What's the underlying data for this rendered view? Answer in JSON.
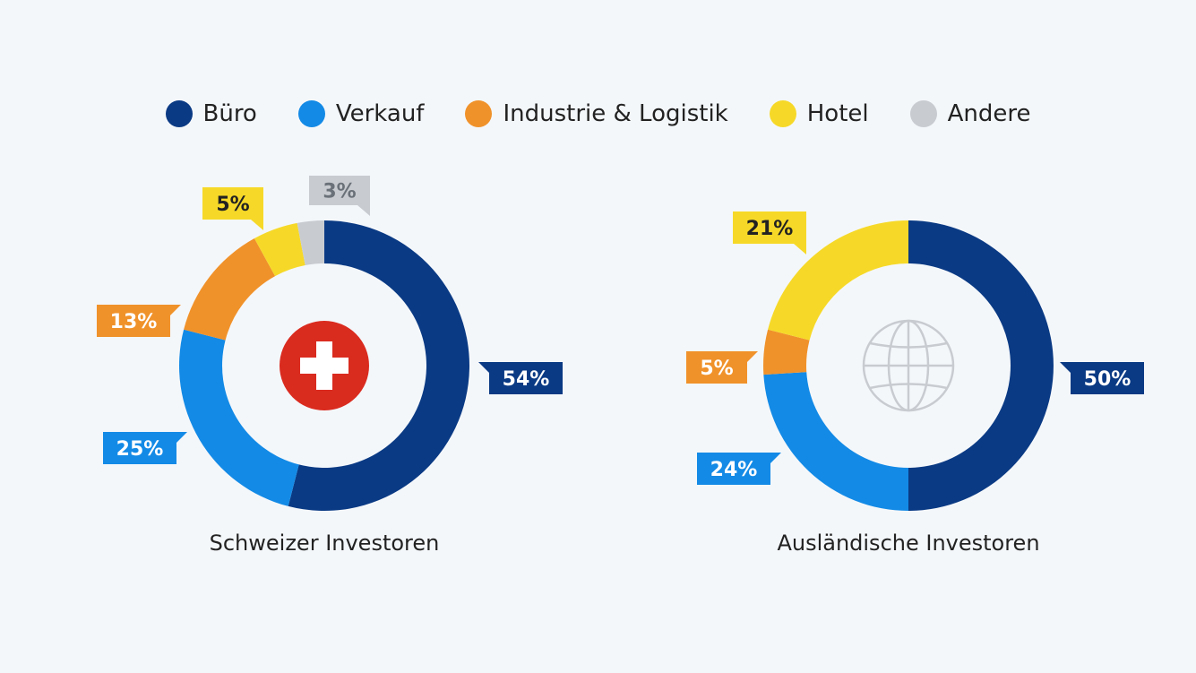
{
  "colors": {
    "Büro": "#0a3a84",
    "Verkauf": "#138ae6",
    "Industrie & Logistik": "#f0922a",
    "Hotel": "#f6d928",
    "Andere": "#c8ccd1"
  },
  "legend": [
    "Büro",
    "Verkauf",
    "Industrie & Logistik",
    "Hotel",
    "Andere"
  ],
  "chart_data": [
    {
      "type": "pie",
      "title": "Schweizer Investoren",
      "center_icon": "swiss-flag-icon",
      "categories": [
        "Büro",
        "Verkauf",
        "Industrie & Logistik",
        "Hotel",
        "Andere"
      ],
      "values": [
        54,
        25,
        13,
        5,
        3
      ],
      "labels": [
        "54%",
        "25%",
        "13%",
        "5%",
        "3%"
      ]
    },
    {
      "type": "pie",
      "title": "Ausländische Investoren",
      "center_icon": "globe-icon",
      "categories": [
        "Büro",
        "Verkauf",
        "Industrie & Logistik",
        "Hotel"
      ],
      "values": [
        50,
        24,
        5,
        21
      ],
      "labels": [
        "50%",
        "24%",
        "5%",
        "21%"
      ]
    }
  ]
}
